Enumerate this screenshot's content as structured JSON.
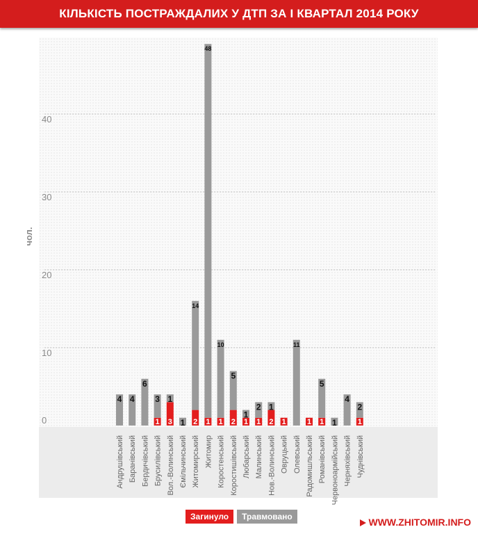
{
  "title": "КІЛЬКІСТЬ ПОСТРАЖДАЛИХ У ДТП ЗА І КВАРТАЛ 2014 РОКУ",
  "source": "WWW.ZHITOMIR.INFO",
  "chart_data": {
    "type": "bar",
    "stacked": true,
    "title": "КІЛЬКІСТЬ ПОСТРАЖДАЛИХ У ДТП ЗА І КВАРТАЛ 2014 РОКУ",
    "xlabel": "",
    "ylabel": "чол.",
    "ylim": [
      0,
      50
    ],
    "yticks": [
      0,
      10,
      20,
      30,
      40
    ],
    "grid": true,
    "legend_position": "bottom",
    "categories": [
      "Андрушівський",
      "Баранівський",
      "Бердичівський",
      "Брусилівський",
      "Вол.-Волинський",
      "Ємільчинський",
      "Житомирський",
      "Житомир",
      "Коростенський",
      "Коростишівський",
      "Любарський",
      "Малинський",
      "Нов.-Волинський",
      "Овруцький",
      "Олевський",
      "Радомишльський",
      "Романівський",
      "Червоноармійський",
      "Черняхівський",
      "Чуднівський"
    ],
    "series": [
      {
        "name": "Загинуло",
        "color": "#e31e1e",
        "values": [
          0,
          0,
          0,
          1,
          3,
          0,
          2,
          1,
          1,
          2,
          1,
          1,
          2,
          1,
          0,
          1,
          1,
          0,
          0,
          1
        ]
      },
      {
        "name": "Травмовано",
        "color": "#9a9a9a",
        "values": [
          4,
          4,
          6,
          3,
          1,
          1,
          14,
          48,
          10,
          5,
          1,
          2,
          1,
          0,
          11,
          0,
          5,
          1,
          4,
          2
        ]
      }
    ]
  }
}
